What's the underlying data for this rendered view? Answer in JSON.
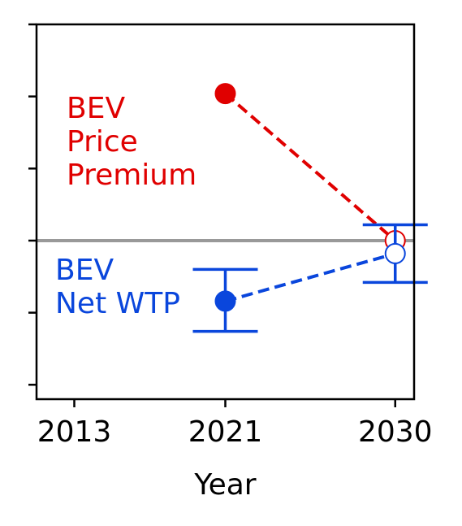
{
  "chart_data": {
    "type": "line",
    "xlabel": "Year",
    "ylabel": "",
    "x_ticks": [
      2013,
      2021,
      2030
    ],
    "x_tick_labels": [
      "2013",
      "2021",
      "2030"
    ],
    "xlim": [
      2011,
      2031
    ],
    "ylim": [
      -1.1,
      1.5
    ],
    "y_ticks": [
      -1,
      -0.5,
      0,
      0.5,
      1,
      1.5
    ],
    "y_tick_labels_visible": false,
    "grid": false,
    "reference_line": {
      "y": 0,
      "color": "#999999"
    },
    "series": [
      {
        "label_lines": [
          "BEV",
          "Price",
          "Premium"
        ],
        "color": "#e00000",
        "linestyle": "dashed",
        "points": [
          {
            "x": 2021,
            "y": 1.02,
            "marker": "filled"
          },
          {
            "x": 2030,
            "y": 0.0,
            "marker": "open"
          }
        ]
      },
      {
        "label_lines": [
          "BEV",
          "Net WTP"
        ],
        "color": "#0a46dc",
        "linestyle": "dashed",
        "points": [
          {
            "x": 2021,
            "y": -0.42,
            "marker": "filled",
            "err_low": -0.63,
            "err_high": -0.2
          },
          {
            "x": 2030,
            "y": -0.09,
            "marker": "open",
            "err_low": -0.29,
            "err_high": 0.11
          }
        ]
      }
    ]
  }
}
